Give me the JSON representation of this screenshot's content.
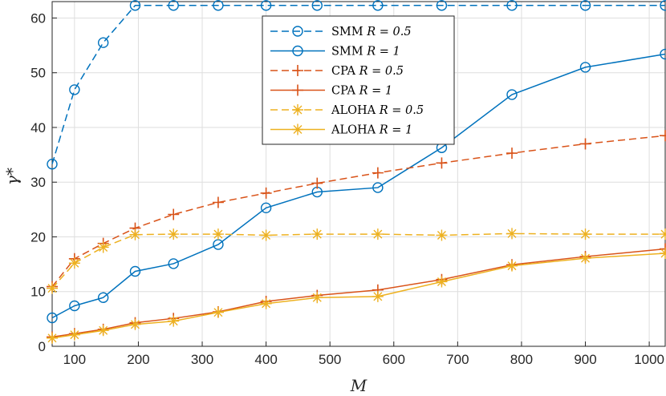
{
  "chart_data": {
    "type": "line",
    "title": "",
    "xlabel": "M",
    "ylabel": "γ*",
    "xlim": [
      65,
      1025
    ],
    "ylim": [
      0,
      63
    ],
    "grid": true,
    "legend_position": "top-center",
    "x_ticks": [
      100,
      200,
      300,
      400,
      500,
      600,
      700,
      800,
      900,
      1000
    ],
    "x_tick_labels": [
      "100",
      "200",
      "300",
      "400",
      "500",
      "600",
      "700",
      "800",
      "900",
      "1000"
    ],
    "y_ticks": [
      0,
      10,
      20,
      30,
      40,
      50,
      60
    ],
    "y_tick_labels": [
      "0",
      "10",
      "20",
      "30",
      "40",
      "50",
      "60"
    ],
    "x": [
      65,
      100,
      145,
      195,
      255,
      325,
      400,
      480,
      575,
      675,
      785,
      900,
      1025
    ],
    "series": [
      {
        "name": "SMM R = 0.5",
        "legend_label": "SMM",
        "legend_param": "R = 0.5",
        "color": "#0072BD",
        "dash": "dashed",
        "marker": "circle",
        "values": [
          33.3,
          46.9,
          55.5,
          62.3,
          62.3,
          62.3,
          62.3,
          62.3,
          62.3,
          62.3,
          62.3,
          62.3,
          62.3
        ]
      },
      {
        "name": "SMM R = 1",
        "legend_label": "SMM",
        "legend_param": "R = 1",
        "color": "#0072BD",
        "dash": "solid",
        "marker": "circle",
        "values": [
          5.2,
          7.4,
          8.9,
          13.7,
          15.1,
          18.6,
          25.3,
          28.2,
          29.0,
          36.3,
          46.0,
          51.0,
          53.4
        ]
      },
      {
        "name": "CPA R = 0.5",
        "legend_label": "CPA",
        "legend_param": "R = 0.5",
        "color": "#D95319",
        "dash": "dashed",
        "marker": "plus",
        "values": [
          10.9,
          16.0,
          18.8,
          21.6,
          24.1,
          26.3,
          28.0,
          29.8,
          31.7,
          33.5,
          35.3,
          37.0,
          38.5
        ]
      },
      {
        "name": "CPA R = 1",
        "legend_label": "CPA",
        "legend_param": "R = 1",
        "color": "#D95319",
        "dash": "solid",
        "marker": "plus",
        "values": [
          1.7,
          2.3,
          3.1,
          4.3,
          5.1,
          6.3,
          8.2,
          9.3,
          10.3,
          12.2,
          14.9,
          16.4,
          17.8
        ]
      },
      {
        "name": "ALOHA R = 0.5",
        "legend_label": "ALOHA",
        "legend_param": "R = 0.5",
        "color": "#EDB120",
        "dash": "dashed",
        "marker": "asterisk",
        "values": [
          10.6,
          15.2,
          18.1,
          20.4,
          20.5,
          20.5,
          20.3,
          20.5,
          20.5,
          20.3,
          20.6,
          20.5,
          20.5
        ]
      },
      {
        "name": "ALOHA R = 1",
        "legend_label": "ALOHA",
        "legend_param": "R = 1",
        "color": "#EDB120",
        "dash": "solid",
        "marker": "asterisk",
        "values": [
          1.5,
          2.1,
          2.9,
          4.0,
          4.6,
          6.2,
          7.8,
          8.9,
          9.1,
          11.8,
          14.7,
          16.1,
          17.0
        ]
      }
    ]
  }
}
